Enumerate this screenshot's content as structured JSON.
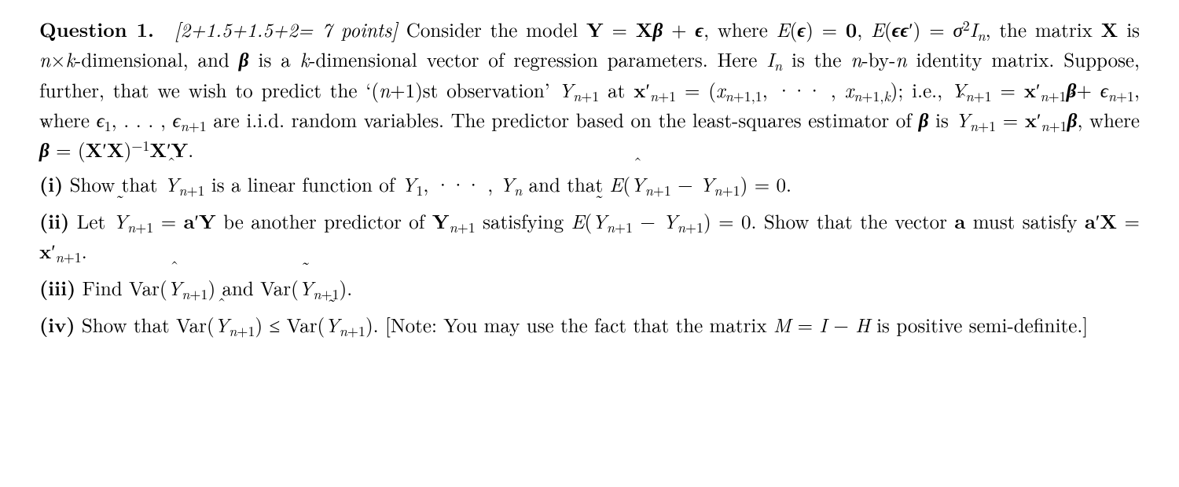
{
  "background_color": "#ffffff",
  "text_color": "#000000",
  "font_family": "Computer Modern / Times-like serif",
  "base_fontsize_pt": 19,
  "line_height": 1.35,
  "question": {
    "label": "Question 1.",
    "points_text": "[2+1.5+1.5+2= 7 points]",
    "intro_plain": "Consider the model Y = Xβ + ε, where E(ε) = 0, E(εε′) = σ²Iₙ, the matrix X is n×k-dimensional, and β is a k-dimensional vector of regression parameters. Here Iₙ is the n-by-n identity matrix. Suppose, further, that we wish to predict the ‘(n+1)st observation’ Y_{n+1} at x′_{n+1} = (x_{n+1,1}, … , x_{n+1,k}); i.e., Y_{n+1} = x′_{n+1}β + ε_{n+1}, where ε₁, … , ε_{n+1} are i.i.d. random variables. The predictor based on the least-squares estimator of β is Ŷ_{n+1} = x′_{n+1} β̂, where β̂ = (X′X)⁻¹X′Y.",
    "parts": {
      "i": {
        "label": "(i)",
        "text_plain": "Show that Ŷ_{n+1} is a linear function of Y₁, … , Yₙ and that E(Ŷ_{n+1} − Y_{n+1}) = 0."
      },
      "ii": {
        "label": "(ii)",
        "text_plain": "Let Ỹ_{n+1} = a′Y be another predictor of Y_{n+1} satisfying E(Ỹ_{n+1} − Y_{n+1}) = 0. Show that the vector a must satisfy a′X = x′_{n+1}."
      },
      "iii": {
        "label": "(iii)",
        "text_plain": "Find Var(Ŷ_{n+1}) and Var(Ỹ_{n+1})."
      },
      "iv": {
        "label": "(iv)",
        "text_plain": "Show that Var(Ŷ_{n+1}) ≤ Var(Ỹ_{n+1}). [Note: You may use the fact that the matrix M = I − H is positive semi-definite.]"
      }
    }
  }
}
